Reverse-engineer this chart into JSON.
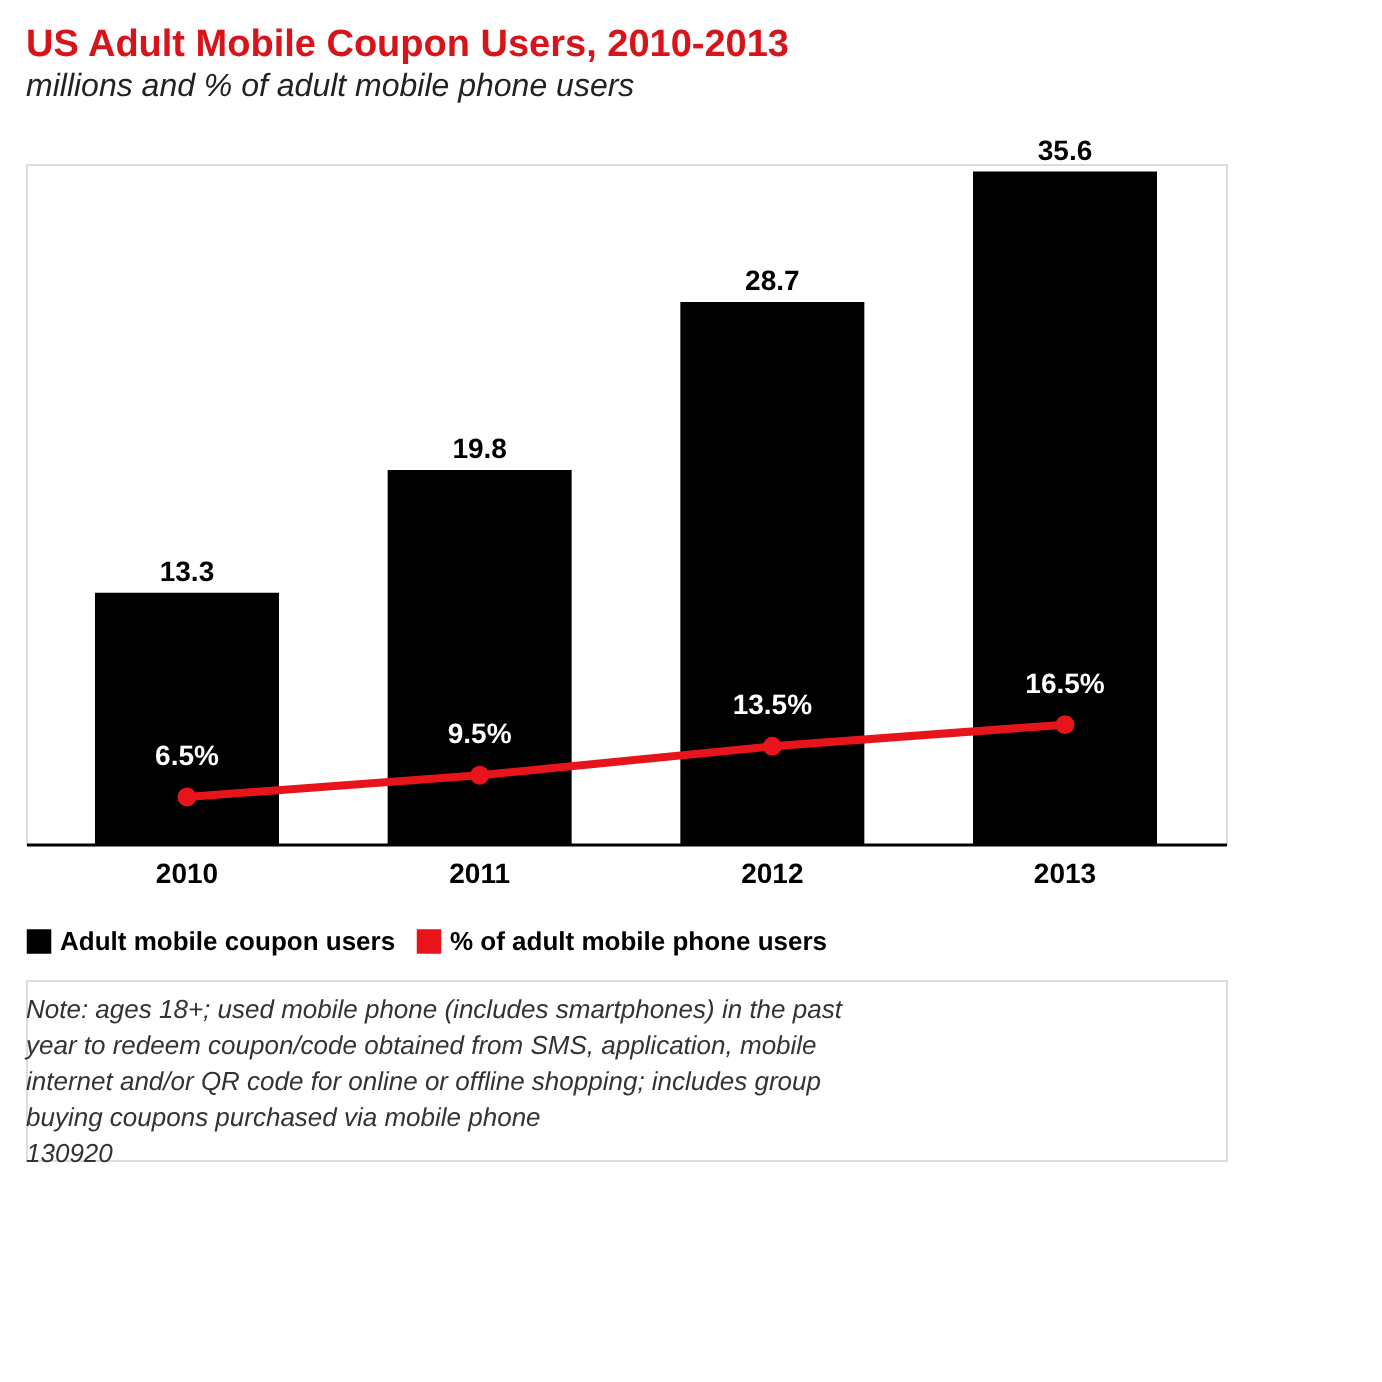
{
  "chart_data": {
    "type": "bar",
    "title": "US Adult Mobile Coupon Users, 2010-2013",
    "subtitle": "millions and % of adult mobile phone users",
    "categories": [
      "2010",
      "2011",
      "2012",
      "2013"
    ],
    "series": [
      {
        "name": "Adult mobile coupon users",
        "color": "#000000",
        "values": [
          13.3,
          19.8,
          28.7,
          35.6
        ]
      },
      {
        "name": "% of adult mobile phone users",
        "type": "line",
        "axis": "y2",
        "color": "#e8141b",
        "marker": "circle",
        "values": [
          6.5,
          9.5,
          13.5,
          16.5
        ],
        "value_labels": [
          "6.5%",
          "9.5%",
          "13.5%",
          "16.5%"
        ]
      }
    ],
    "ylim": [
      0,
      36
    ],
    "y2lim": [
      0,
      94
    ],
    "data_labels": true,
    "tick_labels": "x",
    "grid": false,
    "legend": "bottom",
    "annotations": [
      "Note: ages 18+; used mobile phone (includes smartphones) in the past",
      "year to redeem coupon/code obtained from SMS, application, mobile",
      "internet and/or QR code for online or offline shopping; includes group",
      "buying coupons purchased via mobile phone",
      "130920"
    ]
  }
}
